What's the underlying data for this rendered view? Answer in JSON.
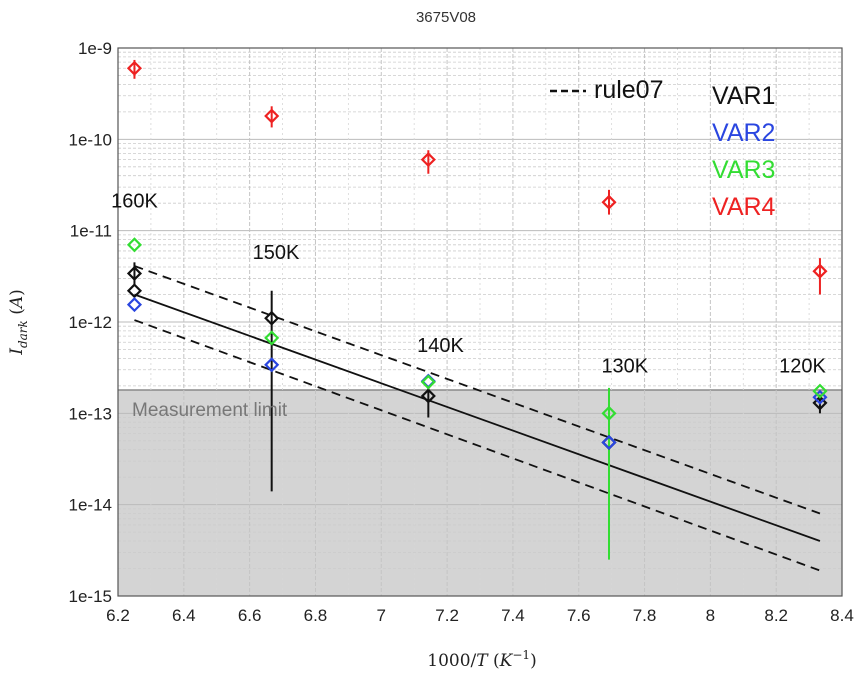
{
  "chart_data": {
    "type": "scatter",
    "title": "3675V08",
    "xlabel": "1000/T (K⁻¹)",
    "ylabel": "I_dark (A)",
    "xlim": [
      6.2,
      8.4
    ],
    "ylim": [
      1e-15,
      1e-09
    ],
    "y_scale": "log",
    "grid": true,
    "x_ticks": [
      "6.2",
      "6.4",
      "6.6",
      "6.8",
      "7",
      "7.2",
      "7.4",
      "7.6",
      "7.8",
      "8",
      "8.2",
      "8.4"
    ],
    "y_ticks": [
      "1e-15",
      "1e-14",
      "1e-13",
      "1e-12",
      "1e-11",
      "1e-10",
      "1e-9"
    ],
    "legend": {
      "placement": "top-right",
      "rule_label": "rule07",
      "entries": [
        "VAR1",
        "VAR2",
        "VAR3",
        "VAR4"
      ]
    },
    "colors": {
      "VAR1": "#111111",
      "VAR2": "#2a46e0",
      "VAR3": "#33dd33",
      "VAR4": "#ee2222",
      "rule07": "#111111",
      "measurement_band": "#d4d4d4"
    },
    "measurement_limit": {
      "label": "Measurement limit",
      "value": 1.8e-13
    },
    "temperature_labels": [
      {
        "text": "160K",
        "x": 6.25,
        "y": 1.8e-11
      },
      {
        "text": "150K",
        "x": 6.68,
        "y": 4.9e-12
      },
      {
        "text": "140K",
        "x": 7.18,
        "y": 4.7e-13
      },
      {
        "text": "130K",
        "x": 7.74,
        "y": 2.8e-13
      },
      {
        "text": "120K",
        "x": 8.28,
        "y": 2.8e-13
      }
    ],
    "series": [
      {
        "name": "VAR1",
        "points": [
          {
            "x": 6.25,
            "y": 3.4e-12,
            "ylo": 2.5e-12,
            "yhi": 4.5e-12
          },
          {
            "x": 6.25,
            "y": 2.2e-12
          },
          {
            "x": 6.667,
            "y": 1.1e-12,
            "ylo": 1.4e-14,
            "yhi": 2.2e-12
          },
          {
            "x": 7.143,
            "y": 1.55e-13,
            "ylo": 9e-14,
            "yhi": 1.9e-13
          },
          {
            "x": 7.692,
            "y": 4.8e-14
          },
          {
            "x": 8.333,
            "y": 1.3e-13,
            "ylo": 1e-13,
            "yhi": 1.6e-13
          }
        ]
      },
      {
        "name": "VAR2",
        "points": [
          {
            "x": 6.25,
            "y": 1.55e-12
          },
          {
            "x": 6.667,
            "y": 3.4e-13
          },
          {
            "x": 7.143,
            "y": 2.25e-13
          },
          {
            "x": 7.692,
            "y": 4.8e-14
          },
          {
            "x": 8.333,
            "y": 1.5e-13
          }
        ]
      },
      {
        "name": "VAR3",
        "points": [
          {
            "x": 6.25,
            "y": 7e-12
          },
          {
            "x": 6.667,
            "y": 6.7e-13
          },
          {
            "x": 7.143,
            "y": 2.2e-13
          },
          {
            "x": 7.692,
            "y": 1e-13,
            "ylo": 2.5e-15,
            "yhi": 1.9e-13
          },
          {
            "x": 8.333,
            "y": 1.75e-13
          }
        ]
      },
      {
        "name": "VAR4",
        "points": [
          {
            "x": 6.25,
            "y": 6e-10,
            "ylo": 4.6e-10,
            "yhi": 7.4e-10
          },
          {
            "x": 6.667,
            "y": 1.8e-10,
            "ylo": 1.35e-10,
            "yhi": 2.3e-10
          },
          {
            "x": 7.143,
            "y": 6e-11,
            "ylo": 4.2e-11,
            "yhi": 7.6e-11
          },
          {
            "x": 7.692,
            "y": 2.05e-11,
            "ylo": 1.5e-11,
            "yhi": 2.8e-11
          },
          {
            "x": 8.333,
            "y": 3.6e-12,
            "ylo": 2e-12,
            "yhi": 5e-12
          }
        ]
      }
    ],
    "fit_lines": [
      {
        "name": "rule07",
        "style": "solid",
        "x": [
          6.25,
          8.333
        ],
        "y": [
          2e-12,
          4e-15
        ]
      },
      {
        "name": "rule07-upper",
        "style": "dashed",
        "x": [
          6.25,
          8.333
        ],
        "y": [
          4.1e-12,
          8e-15
        ]
      },
      {
        "name": "rule07-lower",
        "style": "dashed",
        "x": [
          6.25,
          8.333
        ],
        "y": [
          1.05e-12,
          1.9e-15
        ]
      }
    ]
  }
}
